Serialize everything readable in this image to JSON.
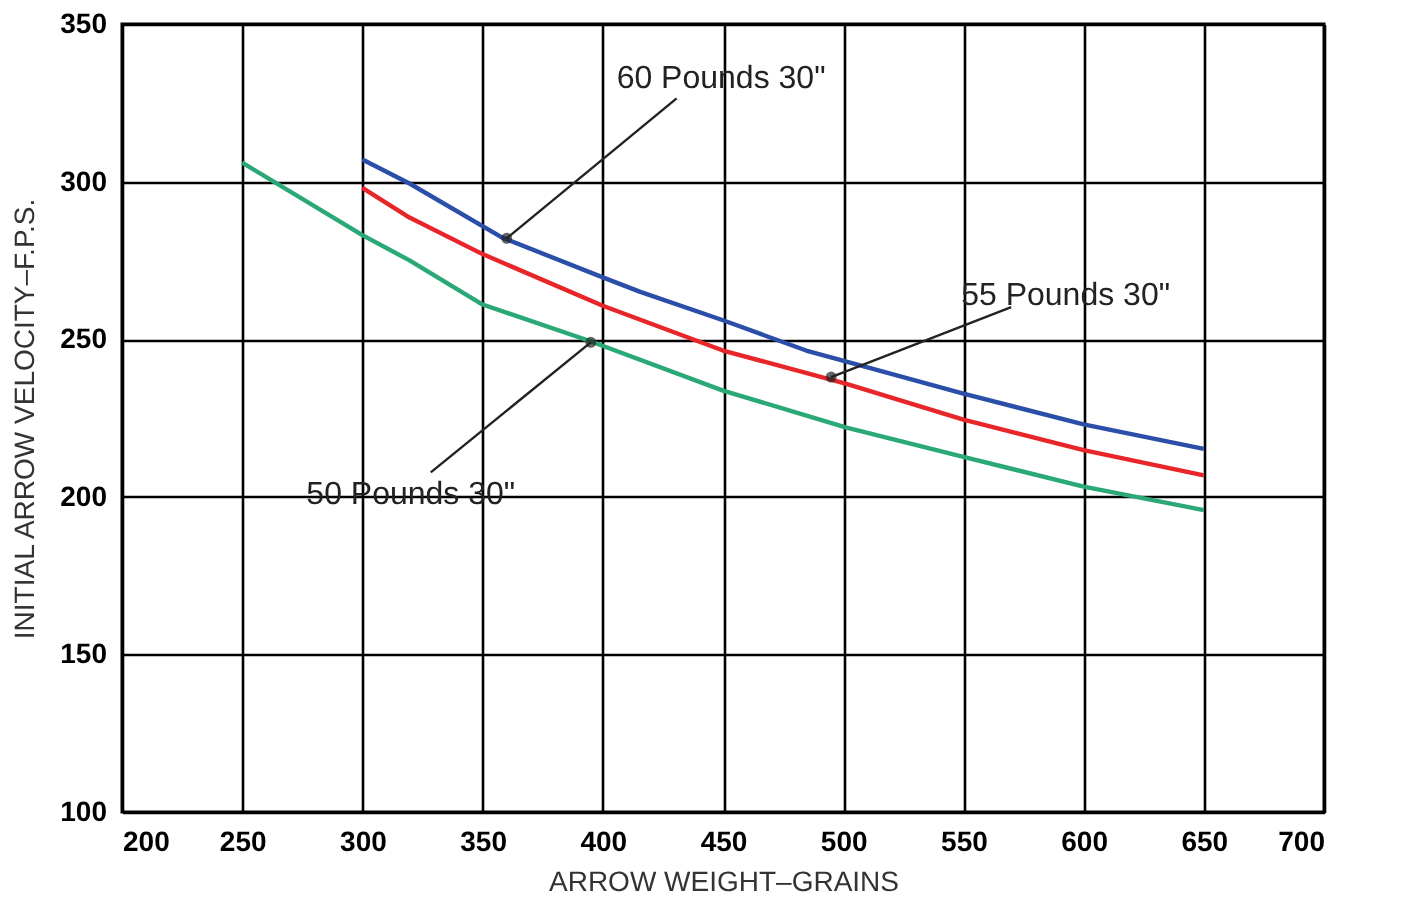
{
  "chart_data": {
    "type": "line",
    "xlabel": "ARROW WEIGHT–GRAINS",
    "ylabel": "INITIAL ARROW VELOCITY–F.P.S.",
    "xlim": [
      200,
      700
    ],
    "xticks": [
      200,
      250,
      300,
      350,
      400,
      450,
      500,
      550,
      600,
      650,
      700
    ],
    "ylim": [
      100,
      350
    ],
    "yticks": [
      100,
      150,
      200,
      250,
      300,
      350
    ],
    "grid": true,
    "legend": false,
    "marker": "none",
    "line_style": "solid",
    "series": [
      {
        "color": "#2b4fa8",
        "x": [
          300,
          319.6,
          358,
          400,
          415.6,
          450,
          484.6,
          501,
          550,
          600,
          650
        ],
        "values": [
          307,
          299.4,
          282.3,
          269.6,
          265,
          256,
          246.4,
          243,
          232.7,
          223,
          215.2
        ]
      },
      {
        "color": "#e8262a",
        "x": [
          300,
          319.6,
          350,
          400,
          450,
          501,
          550,
          600,
          650
        ],
        "values": [
          298,
          288.6,
          277,
          260.6,
          246.4,
          235.9,
          224.5,
          214.8,
          206.8
        ]
      },
      {
        "color": "#2aa876",
        "x": [
          250,
          300,
          319.6,
          350,
          394,
          450,
          501,
          550,
          600,
          650
        ],
        "values": [
          306,
          283,
          275,
          261,
          249.6,
          233.7,
          222,
          212.7,
          203.2,
          195.8
        ]
      }
    ],
    "annotations": [
      {
        "text": "60 Pounds 30\"",
        "x": 360,
        "y": 282
      },
      {
        "text": "55 Pounds 30\"",
        "x": 495,
        "y": 238
      },
      {
        "text": "50 Pounds 30\"",
        "x": 395,
        "y": 249
      }
    ]
  }
}
